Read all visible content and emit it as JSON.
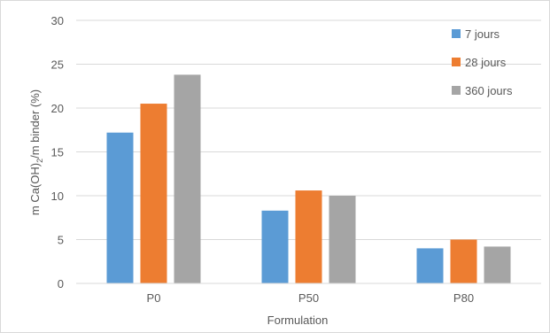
{
  "chart_data": {
    "type": "bar",
    "title": "",
    "xlabel": "Formulation",
    "ylabel_parts": [
      "m Ca(OH)",
      "2",
      "/m binder (%)"
    ],
    "categories": [
      "P0",
      "P50",
      "P80"
    ],
    "ylim": [
      0,
      30
    ],
    "yticks": [
      0,
      5,
      10,
      15,
      20,
      25,
      30
    ],
    "grid": true,
    "legend_position": "top-right",
    "series": [
      {
        "name": "7 jours",
        "color": "#5b9bd5",
        "values": [
          17.2,
          8.3,
          4.0
        ]
      },
      {
        "name": "28 jours",
        "color": "#ed7d31",
        "values": [
          20.5,
          10.6,
          5.0
        ]
      },
      {
        "name": "360 jours",
        "color": "#a5a5a5",
        "values": [
          23.8,
          10.0,
          4.2
        ]
      }
    ]
  }
}
